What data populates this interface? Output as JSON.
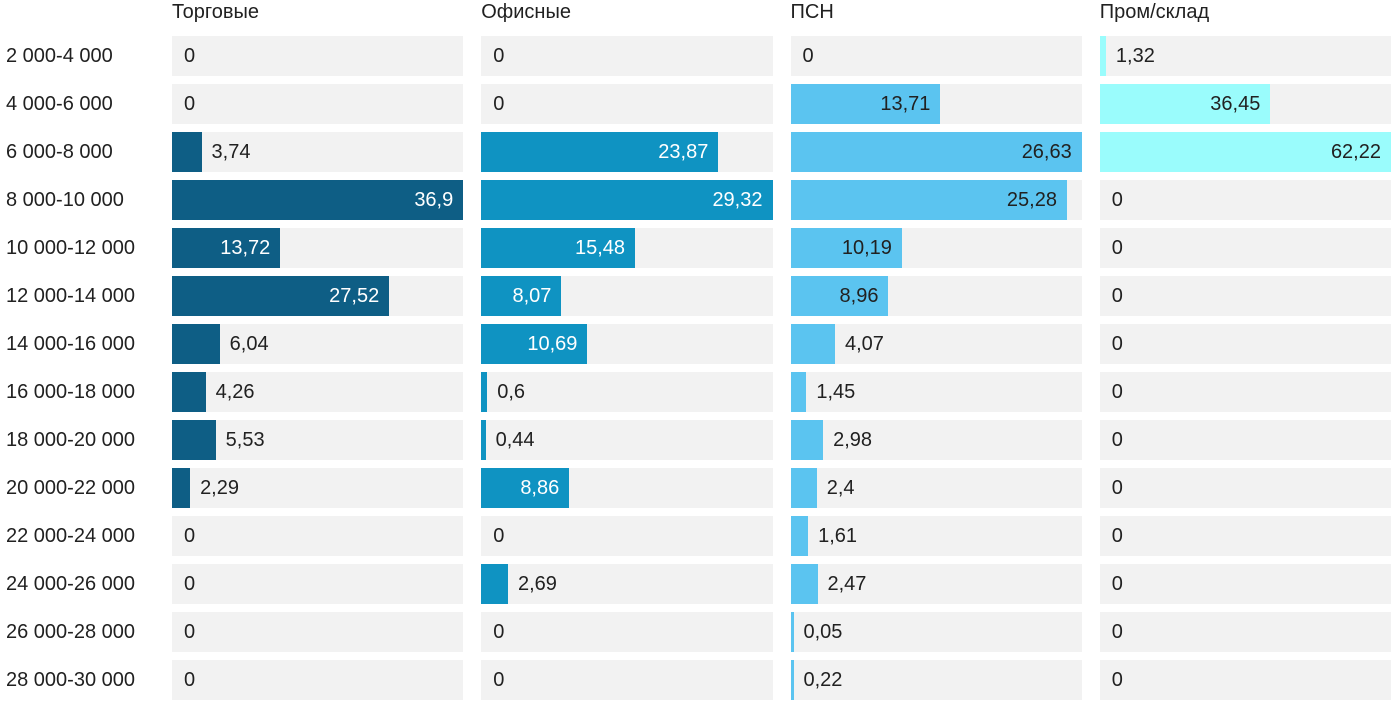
{
  "chart_data": {
    "type": "bar",
    "orientation": "horizontal",
    "title": "",
    "xlabel": "",
    "ylabel": "",
    "normalization": "per-series-max",
    "grid": false,
    "legend_position": "column-headers-top",
    "value_decimal_separator": ",",
    "track_color": "#f2f2f2",
    "text_color": "#212121",
    "categories": [
      "2 000-4 000",
      "4 000-6 000",
      "6 000-8 000",
      "8 000-10 000",
      "10 000-12 000",
      "12 000-14 000",
      "14 000-16 000",
      "16 000-18 000",
      "18 000-20 000",
      "20 000-22 000",
      "22 000-24 000",
      "24 000-26 000",
      "26 000-28 000",
      "28 000-30 000"
    ],
    "series": [
      {
        "name": "Торговые",
        "color": "#0e5e85",
        "inside_label_color": "#ffffff",
        "max": 36.9,
        "values": [
          0,
          0,
          3.74,
          36.9,
          13.72,
          27.52,
          6.04,
          4.26,
          5.53,
          2.29,
          0,
          0,
          0,
          0
        ]
      },
      {
        "name": "Офисные",
        "color": "#0f93c2",
        "inside_label_color": "#ffffff",
        "max": 29.32,
        "values": [
          0,
          0,
          23.87,
          29.32,
          15.48,
          8.07,
          10.69,
          0.6,
          0.44,
          8.86,
          0,
          2.69,
          0,
          0
        ]
      },
      {
        "name": "ПСН",
        "color": "#5bc4f0",
        "inside_label_color": "#212121",
        "max": 26.63,
        "values": [
          0,
          13.71,
          26.63,
          25.28,
          10.19,
          8.96,
          4.07,
          1.45,
          2.98,
          2.4,
          1.61,
          2.47,
          0.05,
          0.22
        ]
      },
      {
        "name": "Пром/склад",
        "color": "#9afcfc",
        "inside_label_color": "#212121",
        "max": 62.22,
        "values": [
          1.32,
          36.45,
          62.22,
          0,
          0,
          0,
          0,
          0,
          0,
          0,
          0,
          0,
          0,
          0
        ]
      }
    ]
  }
}
